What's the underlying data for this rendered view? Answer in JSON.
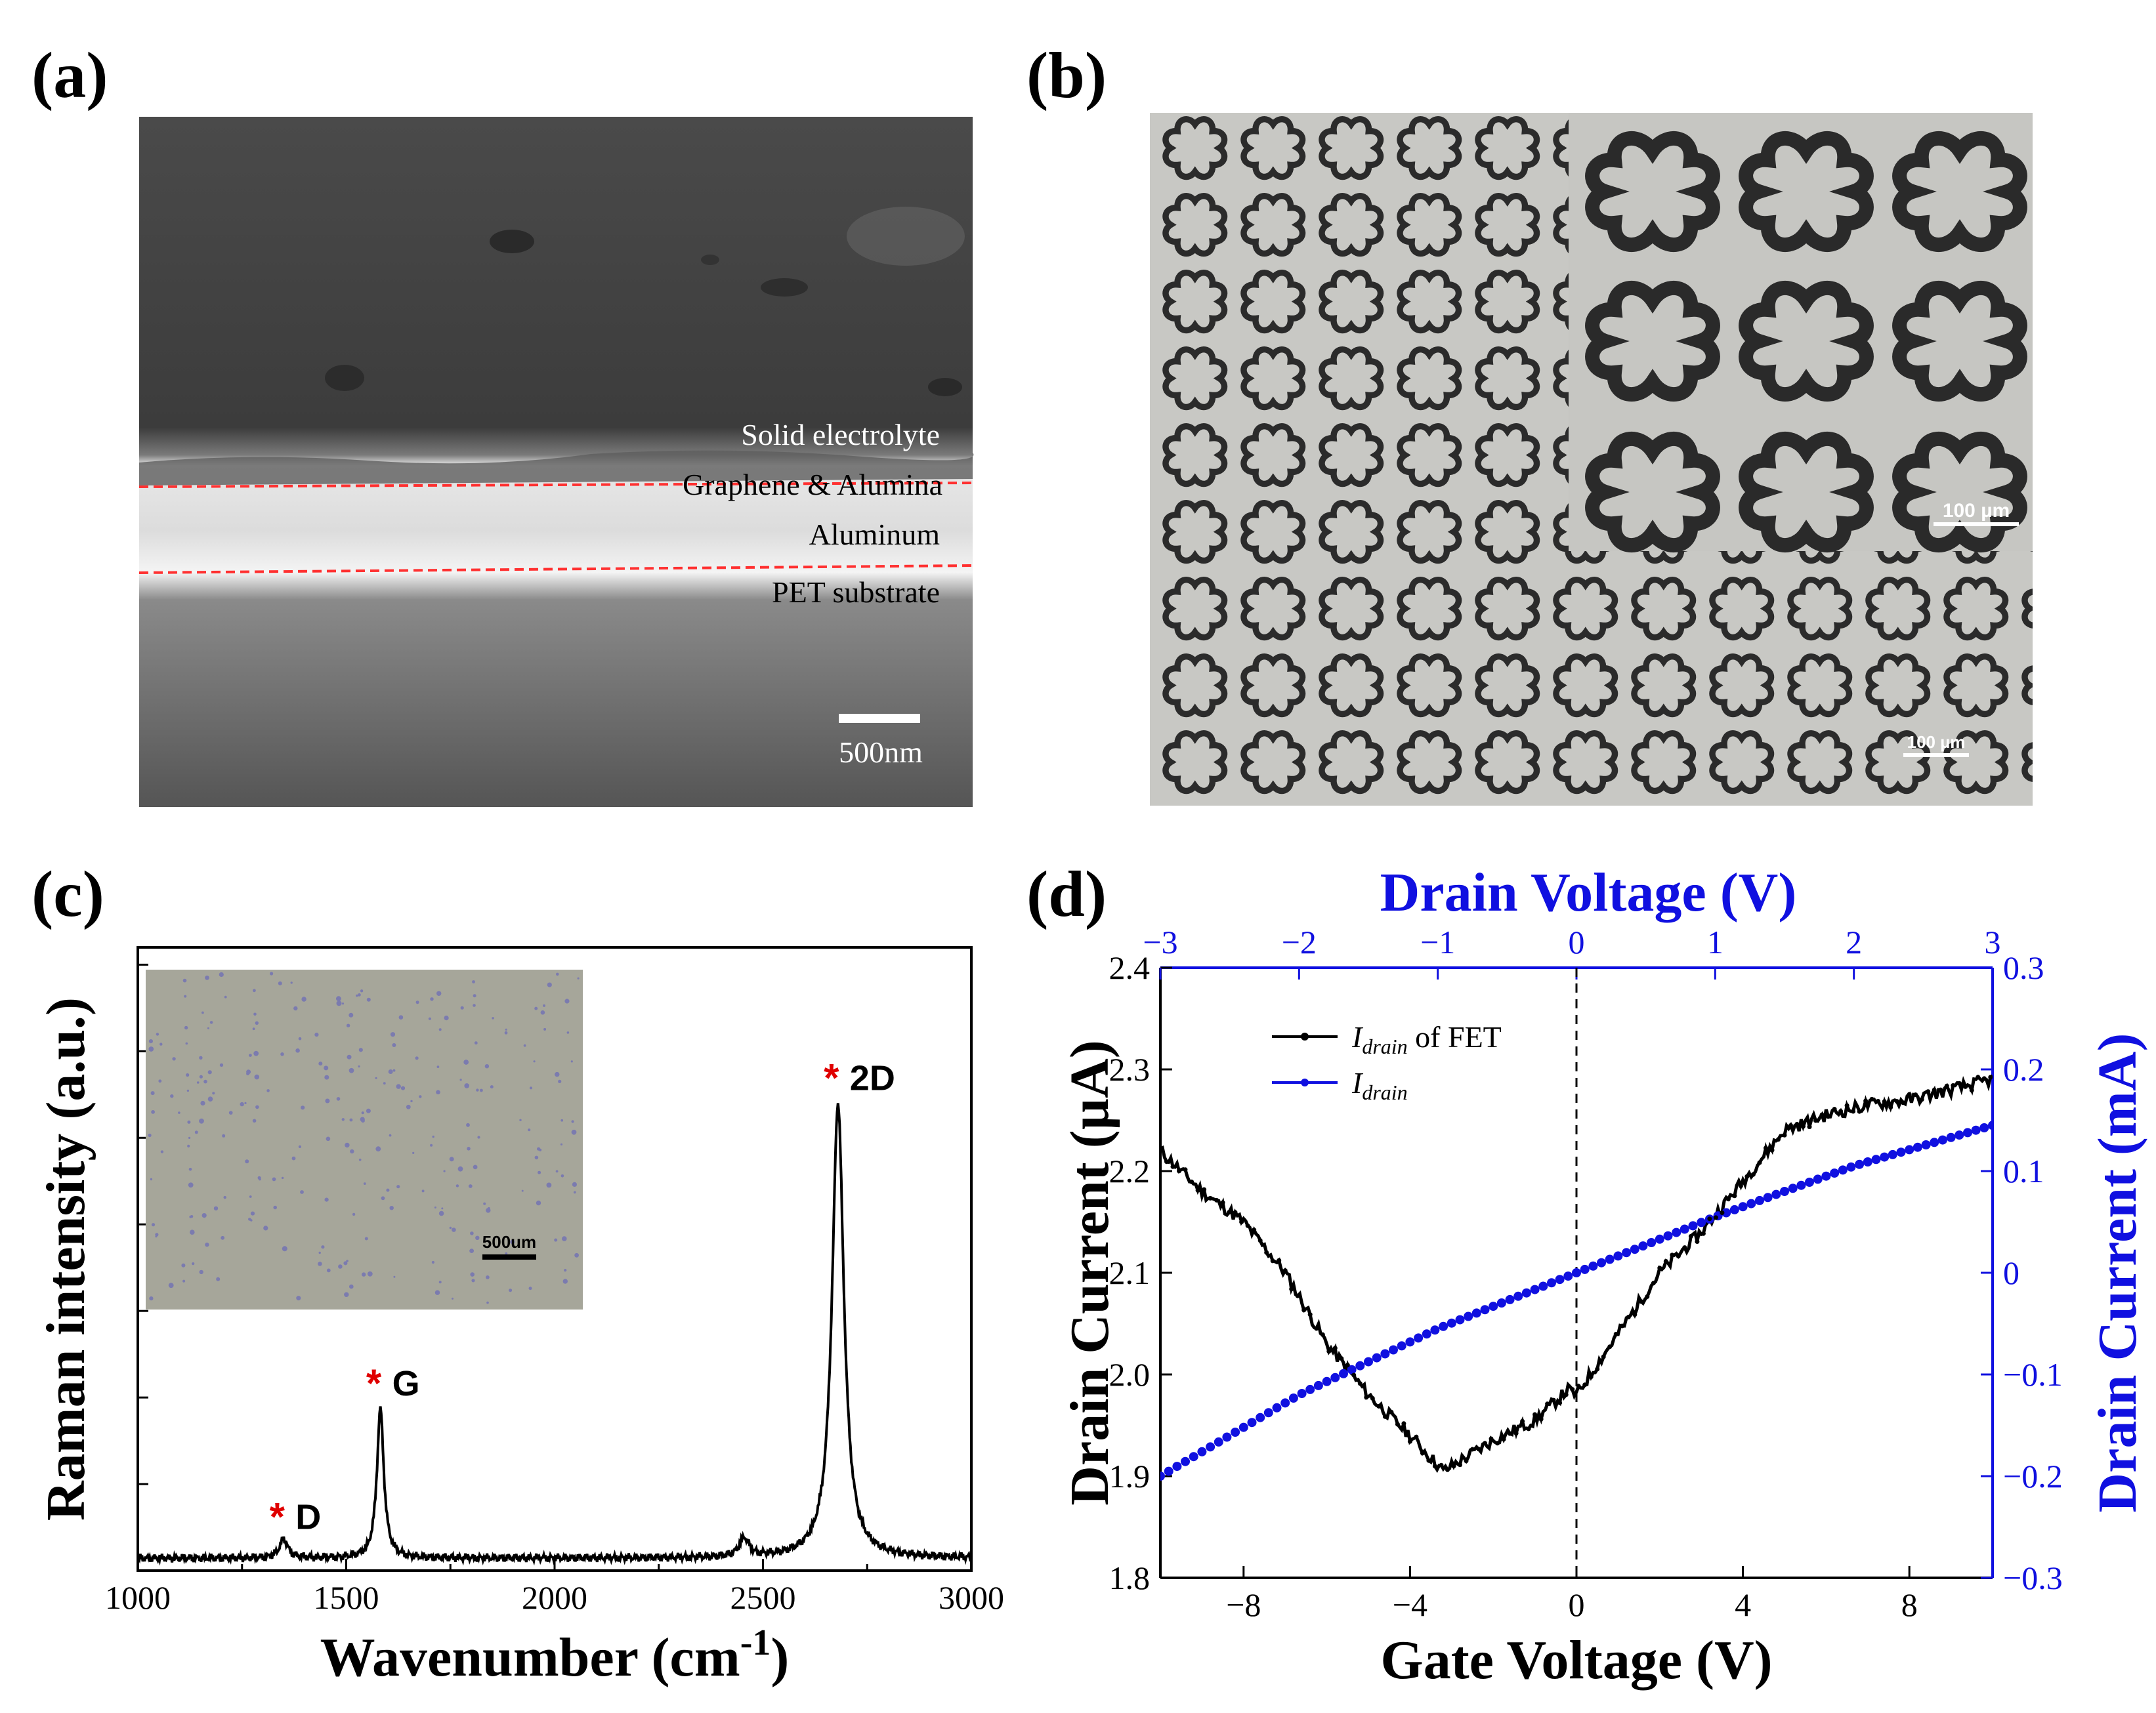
{
  "panels": {
    "a": {
      "label": "(a)",
      "layers": [
        "Solid electrolyte",
        "Graphene & Alumina",
        "Aluminum",
        "PET substrate"
      ],
      "scale_bar": "500nm"
    },
    "b": {
      "label": "(b)",
      "scale_bar_top": "100 µm",
      "scale_bar_bottom": "100 µm"
    },
    "c": {
      "label": "(c)",
      "inset_scale_bar": "500um",
      "peaks": [
        "D",
        "G",
        "2D"
      ]
    },
    "d": {
      "label": "(d)",
      "legend": [
        {
          "main": "I",
          "sub": "drain",
          "suffix": " of FET"
        },
        {
          "main": "I",
          "sub": "drain",
          "suffix": ""
        }
      ]
    }
  },
  "chart_data": [
    {
      "type": "line",
      "panel": "c",
      "title": "",
      "xlabel": "Wavenumber (cm",
      "xlabel_sup": "-1",
      "xlabel_end": ")",
      "ylabel": "Raman intensity (a.u.)",
      "xlim": [
        1000,
        3000
      ],
      "xticks": [
        "1000",
        "1500",
        "2000",
        "2500",
        "3000"
      ],
      "peaks": [
        {
          "name": "D",
          "position": 1350,
          "height": 0.03
        },
        {
          "name": "G",
          "position": 1582,
          "height": 0.24
        },
        {
          "name": "2D",
          "position": 2680,
          "height": 0.73
        }
      ],
      "minor_peak": {
        "position": 2455,
        "height": 0.03
      },
      "baseline": 0.02,
      "color": "#000000"
    },
    {
      "type": "line",
      "panel": "d",
      "xlabel": "Gate Voltage (V)",
      "ylabel_left": "Drain Current (µA)",
      "xlabel_top": "Drain Voltage (V)",
      "ylabel_right": "Drain Current (mA)",
      "xlim": [
        -10,
        10
      ],
      "xticks": [
        "−8",
        "−4",
        "0",
        "4",
        "8"
      ],
      "ylim_left": [
        1.8,
        2.4
      ],
      "yticks_left": [
        "1.8",
        "1.9",
        "2.0",
        "2.1",
        "2.2",
        "2.3",
        "2.4"
      ],
      "xlim_top": [
        -3,
        3
      ],
      "xticks_top": [
        "−3",
        "−2",
        "−1",
        "0",
        "1",
        "2",
        "3"
      ],
      "ylim_right": [
        -0.3,
        0.3
      ],
      "yticks_right": [
        "−0.3",
        "−0.2",
        "−0.1",
        "0",
        "0.1",
        "0.2",
        "0.3"
      ],
      "series": [
        {
          "name": "I_drain of FET",
          "axis": "gate-left",
          "color": "#000000",
          "x": [
            -10,
            -9,
            -8,
            -7,
            -6,
            -5,
            -4,
            -3.2,
            -2,
            -1,
            -0.2,
            0,
            1,
            2,
            3,
            4,
            5,
            6,
            7,
            8,
            9,
            10
          ],
          "y": [
            2.22,
            2.18,
            2.15,
            2.1,
            2.03,
            1.98,
            1.94,
            1.905,
            1.935,
            1.955,
            1.985,
            1.98,
            2.04,
            2.1,
            2.14,
            2.19,
            2.24,
            2.255,
            2.265,
            2.27,
            2.28,
            2.29
          ]
        },
        {
          "name": "I_drain",
          "axis": "drain-right",
          "color": "#1010e0",
          "x": [
            -3,
            -2,
            -1,
            0,
            1,
            2,
            3
          ],
          "y": [
            -0.2,
            -0.12,
            -0.055,
            0.0,
            0.055,
            0.105,
            0.145
          ]
        }
      ]
    }
  ]
}
